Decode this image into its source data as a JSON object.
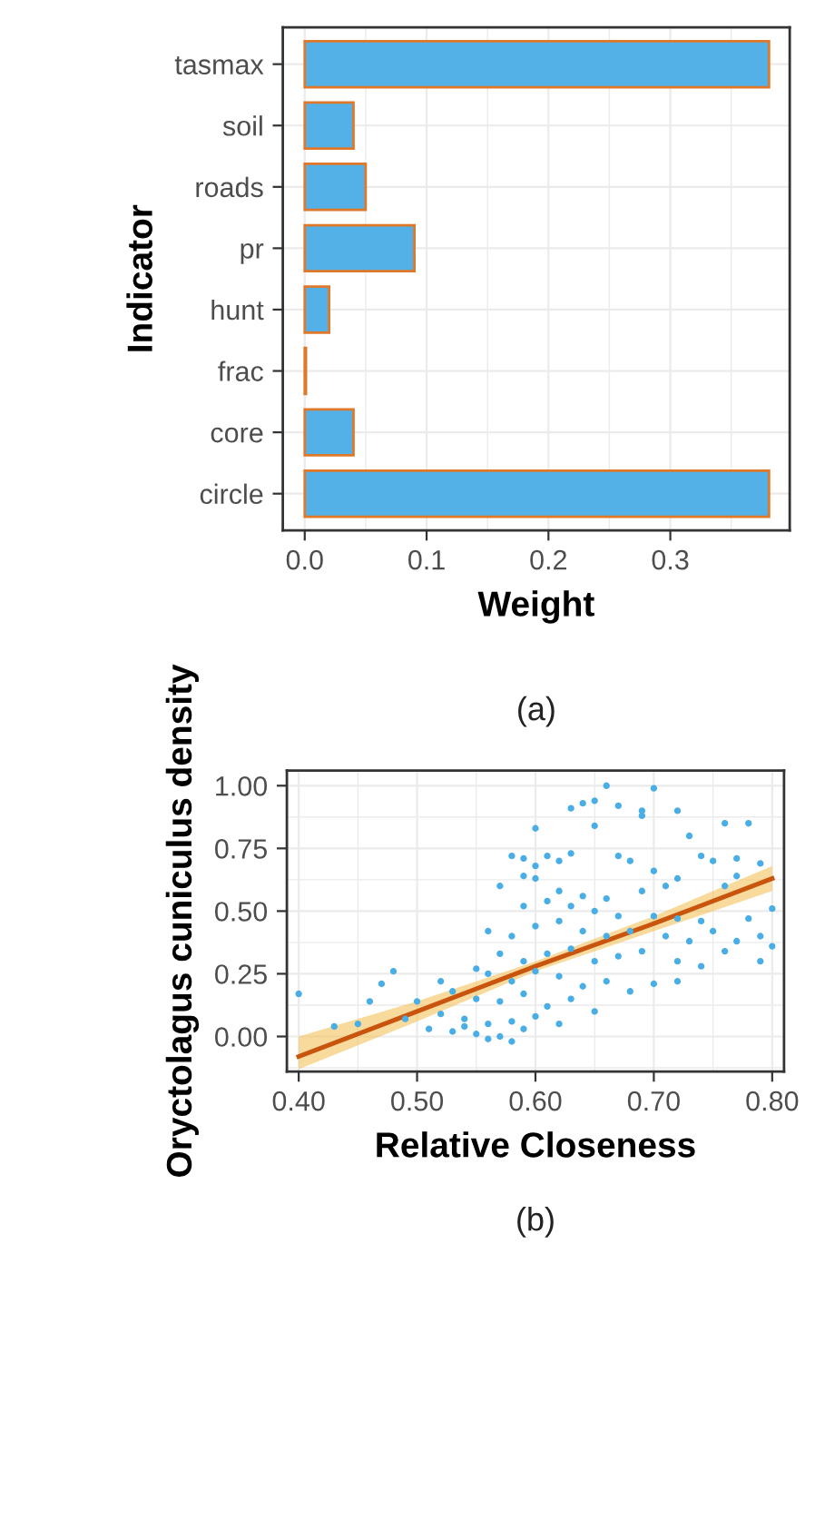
{
  "chart_data": [
    {
      "type": "bar",
      "orientation": "horizontal",
      "categories": [
        "tasmax",
        "soil",
        "roads",
        "pr",
        "hunt",
        "frac",
        "core",
        "circle"
      ],
      "values": [
        0.381,
        0.04,
        0.05,
        0.09,
        0.02,
        0.001,
        0.04,
        0.381
      ],
      "color": "#53b1e8",
      "xlim": [
        -0.018,
        0.398
      ],
      "xticks": [
        {
          "value": 0,
          "label": "0.0"
        },
        0.1,
        0.2,
        0.3
      ],
      "xlabel": "Weight",
      "ylabel": "Indicator",
      "grid": true,
      "annotations": [
        "(a)"
      ]
    },
    {
      "type": "scatter",
      "xlabel": "Relative Closeness",
      "ylabel": "Oryctolagus cuniculus density",
      "grid": true,
      "annotations": [
        "(b)"
      ],
      "xlim": [
        0.39,
        0.81
      ],
      "ylim": [
        -0.14,
        1.06
      ],
      "xticks": [
        {
          "value": 0.4,
          "label": "0.40"
        },
        {
          "value": 0.5,
          "label": "0.50"
        },
        {
          "value": 0.6,
          "label": "0.60"
        },
        {
          "value": 0.7,
          "label": "0.70"
        },
        {
          "value": 0.8,
          "label": "0.80"
        }
      ],
      "yticks": [
        {
          "value": 0,
          "label": "0.00"
        },
        {
          "value": 0.25,
          "label": "0.25"
        },
        {
          "value": 0.5,
          "label": "0.50"
        },
        {
          "value": 0.75,
          "label": "0.75"
        },
        {
          "value": 1,
          "label": "1.00"
        }
      ],
      "series": [
        {
          "type": "scatter",
          "color": "#4aaee6",
          "x": [
            0.66,
            0.7,
            0.64,
            0.65,
            0.67,
            0.63,
            0.69,
            0.69,
            0.72,
            0.76,
            0.78,
            0.6,
            0.65,
            0.73,
            0.74,
            0.77,
            0.58,
            0.59,
            0.61,
            0.63,
            0.67,
            0.6,
            0.62,
            0.68,
            0.75,
            0.79,
            0.59,
            0.6,
            0.7,
            0.72,
            0.57,
            0.62,
            0.64,
            0.66,
            0.69,
            0.71,
            0.76,
            0.77,
            0.59,
            0.61,
            0.63,
            0.65,
            0.67,
            0.7,
            0.72,
            0.74,
            0.78,
            0.8,
            0.56,
            0.58,
            0.6,
            0.62,
            0.64,
            0.66,
            0.68,
            0.71,
            0.73,
            0.75,
            0.77,
            0.79,
            0.8,
            0.57,
            0.59,
            0.61,
            0.63,
            0.65,
            0.67,
            0.69,
            0.72,
            0.74,
            0.76,
            0.79,
            0.55,
            0.56,
            0.58,
            0.6,
            0.62,
            0.64,
            0.66,
            0.68,
            0.7,
            0.72,
            0.52,
            0.48,
            0.47,
            0.53,
            0.55,
            0.57,
            0.59,
            0.61,
            0.63,
            0.65,
            0.5,
            0.46,
            0.49,
            0.52,
            0.54,
            0.56,
            0.58,
            0.6,
            0.62,
            0.51,
            0.53,
            0.55,
            0.57,
            0.58,
            0.56,
            0.54,
            0.43,
            0.4,
            0.45,
            0.59
          ],
          "values": [
            1.0,
            0.99,
            0.93,
            0.94,
            0.92,
            0.91,
            0.9,
            0.88,
            0.9,
            0.85,
            0.85,
            0.83,
            0.84,
            0.8,
            0.72,
            0.71,
            0.72,
            0.71,
            0.72,
            0.73,
            0.72,
            0.68,
            0.7,
            0.7,
            0.7,
            0.69,
            0.64,
            0.63,
            0.66,
            0.63,
            0.6,
            0.58,
            0.56,
            0.55,
            0.58,
            0.6,
            0.6,
            0.64,
            0.52,
            0.54,
            0.52,
            0.5,
            0.48,
            0.48,
            0.47,
            0.46,
            0.47,
            0.51,
            0.42,
            0.4,
            0.44,
            0.46,
            0.42,
            0.4,
            0.42,
            0.4,
            0.38,
            0.42,
            0.38,
            0.4,
            0.36,
            0.33,
            0.3,
            0.33,
            0.35,
            0.3,
            0.32,
            0.34,
            0.3,
            0.28,
            0.34,
            0.3,
            0.27,
            0.25,
            0.22,
            0.26,
            0.24,
            0.2,
            0.22,
            0.18,
            0.21,
            0.22,
            0.22,
            0.26,
            0.21,
            0.18,
            0.15,
            0.14,
            0.17,
            0.12,
            0.15,
            0.1,
            0.14,
            0.14,
            0.07,
            0.09,
            0.07,
            0.05,
            0.06,
            0.08,
            0.05,
            0.03,
            0.02,
            0.01,
            0.0,
            -0.02,
            -0.01,
            0.04,
            0.04,
            0.17,
            0.05,
            0.03
          ]
        },
        {
          "type": "line",
          "color": "#c9540e",
          "x": [
            0.4,
            0.5,
            0.6,
            0.7,
            0.8
          ],
          "values": [
            -0.08,
            0.1,
            0.28,
            0.45,
            0.63
          ],
          "lower": [
            -0.13,
            0.06,
            0.26,
            0.42,
            0.58
          ],
          "upper": [
            0.0,
            0.14,
            0.3,
            0.48,
            0.68
          ]
        }
      ]
    }
  ]
}
